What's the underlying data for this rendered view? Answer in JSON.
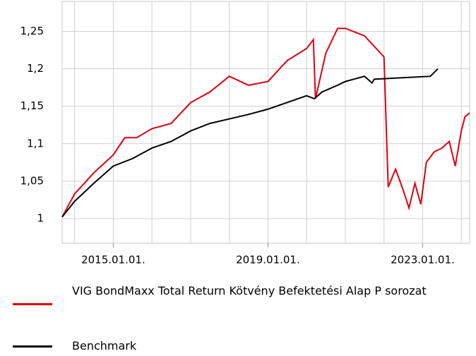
{
  "chart_data": {
    "type": "line",
    "xlim": [
      "2013-09-05",
      "2024-03-20"
    ],
    "ylim": [
      0.967,
      1.29
    ],
    "xticks": [
      {
        "value": "2015-01-01",
        "label": "2015.01.01."
      },
      {
        "value": "2019-01-01",
        "label": "2019.01.01."
      },
      {
        "value": "2023-01-01",
        "label": "2023.01.01."
      }
    ],
    "xgrid": [
      "2014-01-01",
      "2015-01-01",
      "2016-01-01",
      "2017-01-01",
      "2018-01-01",
      "2019-01-01",
      "2020-01-01",
      "2021-01-01",
      "2022-01-01",
      "2023-01-01",
      "2024-01-01"
    ],
    "yticks": [
      1,
      {
        "value": 1.05,
        "label": "1,05"
      },
      {
        "value": 1.1,
        "label": "1,1"
      },
      {
        "value": 1.15,
        "label": "1,15"
      },
      {
        "value": 1.2,
        "label": "1,2"
      },
      {
        "value": 1.25,
        "label": "1,25"
      }
    ],
    "grid": true,
    "series": [
      {
        "name": "VIG BondMaxx Total Return Kötvény Befektetési Alap P sorozat",
        "color": "#e0000f",
        "x": [
          "2013-09-05",
          "2014-01-01",
          "2014-07-01",
          "2015-01-01",
          "2015-04-20",
          "2015-08-10",
          "2016-01-01",
          "2016-07-01",
          "2017-01-01",
          "2017-07-01",
          "2018-01-01",
          "2018-07-01",
          "2019-01-01",
          "2019-07-01",
          "2020-01-01",
          "2020-03-05",
          "2020-03-25",
          "2020-07-01",
          "2020-10-20",
          "2021-01-01",
          "2021-07-01",
          "2022-01-01",
          "2022-02-10",
          "2022-04-20",
          "2022-07-01",
          "2022-08-25",
          "2022-10-20",
          "2022-12-15",
          "2023-02-05",
          "2023-04-20",
          "2023-07-01",
          "2023-09-10",
          "2023-11-05",
          "2024-01-01",
          "2024-02-05",
          "2024-03-20"
        ],
        "values": [
          1.002,
          1.033,
          1.061,
          1.085,
          1.108,
          1.108,
          1.12,
          1.127,
          1.155,
          1.169,
          1.19,
          1.178,
          1.183,
          1.211,
          1.227,
          1.239,
          1.16,
          1.221,
          1.254,
          1.254,
          1.244,
          1.216,
          1.042,
          1.066,
          1.038,
          1.014,
          1.047,
          1.019,
          1.075,
          1.089,
          1.094,
          1.103,
          1.07,
          1.117,
          1.136,
          1.141
        ]
      },
      {
        "name": "Benchmark",
        "color": "#000000",
        "x": [
          "2013-09-05",
          "2014-01-01",
          "2014-07-01",
          "2015-01-01",
          "2015-07-01",
          "2016-01-01",
          "2016-07-01",
          "2017-01-01",
          "2017-07-01",
          "2018-01-01",
          "2018-07-01",
          "2019-01-01",
          "2019-07-01",
          "2020-01-01",
          "2020-03-15",
          "2020-05-25",
          "2020-10-20",
          "2021-01-01",
          "2021-07-01",
          "2021-09-10",
          "2021-10-01",
          "2023-03-15",
          "2023-05-25"
        ],
        "values": [
          1.002,
          1.023,
          1.047,
          1.07,
          1.08,
          1.094,
          1.103,
          1.117,
          1.127,
          1.133,
          1.139,
          1.146,
          1.155,
          1.164,
          1.16,
          1.169,
          1.178,
          1.183,
          1.19,
          1.181,
          1.186,
          1.19,
          1.2
        ]
      }
    ]
  }
}
